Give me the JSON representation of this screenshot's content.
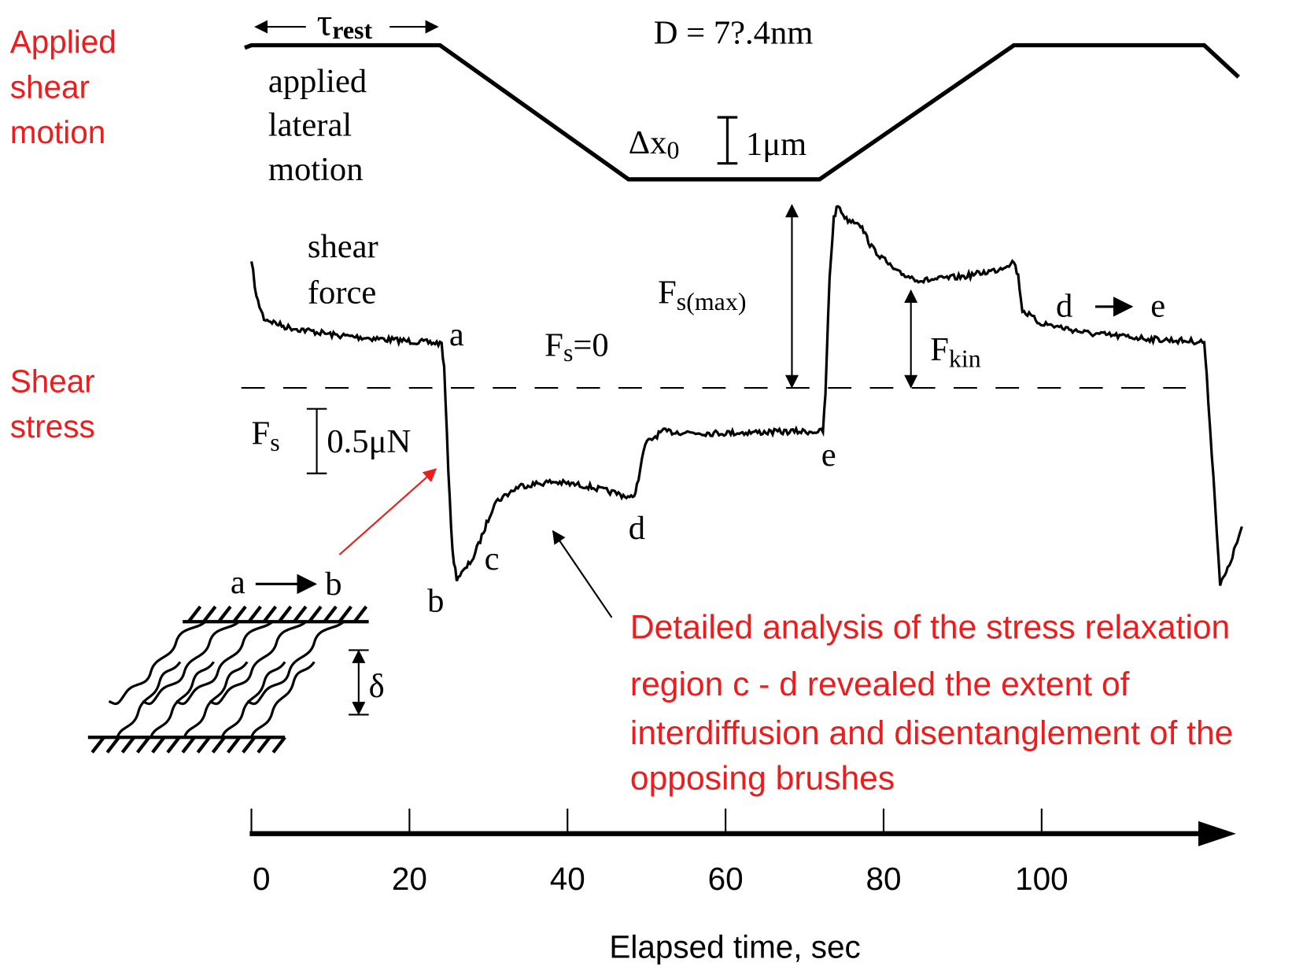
{
  "left_labels": {
    "motion": [
      "Applied",
      "shear",
      "motion"
    ],
    "stress": [
      "Shear",
      "stress"
    ]
  },
  "top": {
    "tau": "τ",
    "tau_sub": "rest",
    "distance": "D = 7?.4nm",
    "lateral": [
      "applied",
      "lateral",
      "motion"
    ],
    "dx": "Δx",
    "dx_sub": "0",
    "dx_scale": "1μm"
  },
  "force": {
    "label": [
      "shear",
      "force"
    ],
    "fs_max": "F",
    "fs_max_sub": "s(max)",
    "fs0": "F",
    "fs0_sub": "s",
    "fs0_rest": "=0",
    "fkin": "F",
    "fkin_sub": "kin",
    "fs": "F",
    "fs_sub": "s",
    "fs_scale": "0.5μN"
  },
  "points": [
    "a",
    "b",
    "c",
    "d",
    "e"
  ],
  "transition_de": [
    "d",
    "e"
  ],
  "transition_ab": [
    "a",
    "b"
  ],
  "delta": "δ",
  "note": [
    "Detailed analysis of the stress relaxation",
    "region  c - d revealed the extent of",
    "interdiffusion and disentanglement of the",
    "opposing brushes"
  ],
  "x_axis": {
    "ticks": [
      0,
      20,
      40,
      60,
      80,
      100
    ],
    "title": "Elapsed time, sec"
  }
}
